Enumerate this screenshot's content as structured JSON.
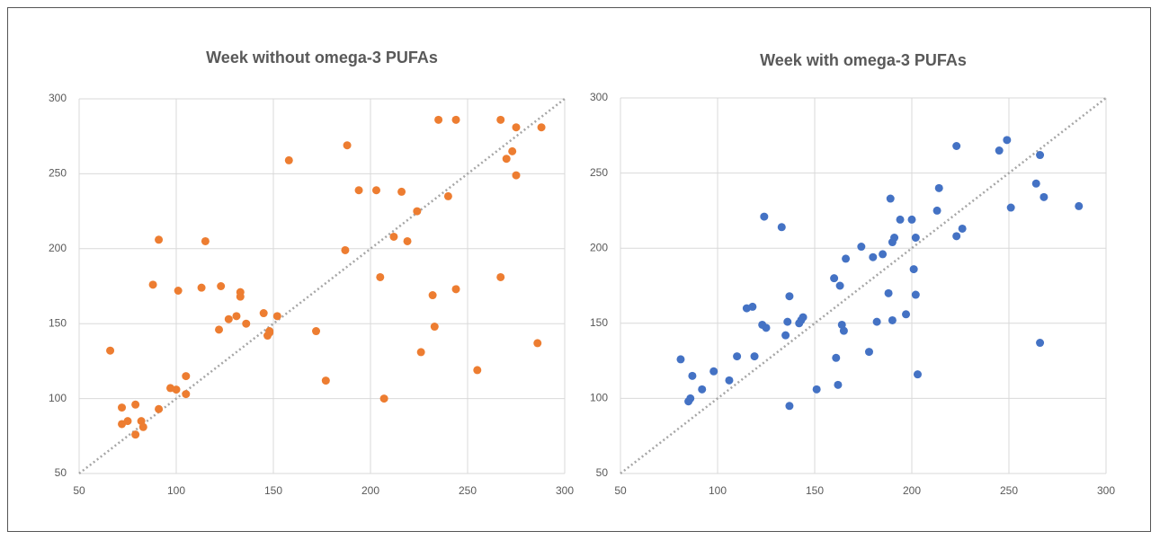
{
  "chart_data": [
    {
      "type": "scatter",
      "title": "Week without omega-3 PUFAs",
      "color": "#ed7d31",
      "grid": true,
      "xlim": [
        50,
        300
      ],
      "ylim": [
        50,
        300
      ],
      "xticks": [
        50,
        100,
        150,
        200,
        250,
        300
      ],
      "yticks": [
        50,
        100,
        150,
        200,
        250,
        300
      ],
      "x": [
        66,
        72,
        72,
        75,
        79,
        79,
        82,
        83,
        91,
        88,
        91,
        97,
        100,
        101,
        105,
        105,
        113,
        115,
        122,
        123,
        127,
        131,
        133,
        133,
        136,
        145,
        147,
        148,
        148,
        152,
        158,
        172,
        177,
        187,
        188,
        194,
        203,
        205,
        207,
        212,
        216,
        219,
        224,
        226,
        232,
        233,
        235,
        240,
        244,
        244,
        255,
        267,
        267,
        270,
        273,
        275,
        275,
        286,
        288
      ],
      "y": [
        132,
        94,
        83,
        85,
        96,
        76,
        85,
        81,
        93,
        176,
        206,
        107,
        106,
        172,
        115,
        103,
        174,
        205,
        146,
        175,
        153,
        155,
        171,
        168,
        150,
        157,
        142,
        145,
        144,
        155,
        259,
        145,
        112,
        199,
        269,
        239,
        239,
        181,
        100,
        208,
        238,
        205,
        225,
        131,
        169,
        148,
        286,
        235,
        286,
        173,
        119,
        286,
        181,
        260,
        265,
        249,
        281,
        137,
        281
      ]
    },
    {
      "type": "scatter",
      "title": "Week  with omega-3 PUFAs",
      "color": "#4472c4",
      "grid": true,
      "xlim": [
        50,
        300
      ],
      "ylim": [
        50,
        300
      ],
      "xticks": [
        50,
        100,
        150,
        200,
        250,
        300
      ],
      "yticks": [
        50,
        100,
        150,
        200,
        250,
        300
      ],
      "x": [
        81,
        85,
        86,
        87,
        92,
        98,
        106,
        110,
        115,
        118,
        119,
        123,
        125,
        124,
        133,
        135,
        136,
        137,
        137,
        142,
        143,
        144,
        151,
        160,
        161,
        162,
        163,
        164,
        165,
        166,
        174,
        178,
        180,
        182,
        185,
        188,
        189,
        190,
        190,
        191,
        194,
        197,
        200,
        201,
        202,
        202,
        203,
        213,
        214,
        223,
        223,
        226,
        245,
        249,
        251,
        264,
        266,
        266,
        268,
        286
      ],
      "y": [
        126,
        98,
        100,
        115,
        106,
        118,
        112,
        128,
        160,
        161,
        128,
        149,
        147,
        221,
        214,
        142,
        151,
        95,
        168,
        150,
        152,
        154,
        106,
        180,
        127,
        109,
        175,
        149,
        145,
        193,
        201,
        131,
        194,
        151,
        196,
        170,
        233,
        152,
        204,
        207,
        219,
        156,
        219,
        186,
        169,
        207,
        116,
        225,
        240,
        208,
        268,
        213,
        265,
        272,
        227,
        243,
        262,
        137,
        234,
        228
      ]
    }
  ]
}
